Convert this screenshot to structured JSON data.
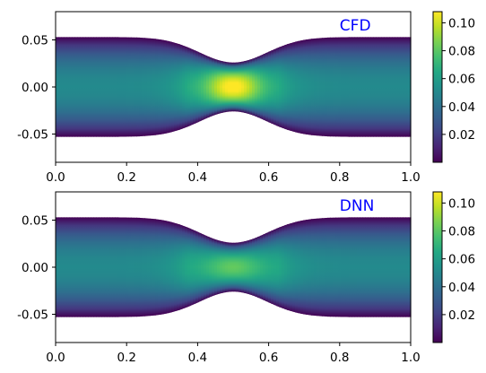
{
  "chart_data": [
    {
      "type": "heatmap",
      "label": "CFD",
      "label_color": "#0000ff",
      "colormap": "viridis",
      "xlim": [
        0.0,
        1.0
      ],
      "ylim": [
        -0.08,
        0.08
      ],
      "x_ticks": [
        "0.0",
        "0.2",
        "0.4",
        "0.6",
        "0.8",
        "1.0"
      ],
      "y_ticks": [
        "0.05",
        "0.00",
        "-0.05"
      ],
      "domain": {
        "wall_half_height": 0.053,
        "throat_half_height": 0.026,
        "throat_center_x": 0.5,
        "stenosis_half_width": 0.17
      },
      "field": {
        "peak_value": 0.108,
        "peak_x": 0.5,
        "wall_value": 0.0
      },
      "colorbar": {
        "min": 0.0,
        "max": 0.108,
        "ticks": [
          "0.10",
          "0.08",
          "0.06",
          "0.04",
          "0.02"
        ]
      }
    },
    {
      "type": "heatmap",
      "label": "DNN",
      "label_color": "#0000ff",
      "colormap": "viridis",
      "xlim": [
        0.0,
        1.0
      ],
      "ylim": [
        -0.08,
        0.08
      ],
      "x_ticks": [
        "0.0",
        "0.2",
        "0.4",
        "0.6",
        "0.8",
        "1.0"
      ],
      "y_ticks": [
        "0.05",
        "0.00",
        "-0.05"
      ],
      "domain": {
        "wall_half_height": 0.053,
        "throat_half_height": 0.026,
        "throat_center_x": 0.5,
        "stenosis_half_width": 0.17
      },
      "field": {
        "peak_value": 0.078,
        "peak_x": 0.5,
        "wall_value": 0.0
      },
      "colorbar": {
        "min": 0.0,
        "max": 0.108,
        "ticks": [
          "0.10",
          "0.08",
          "0.06",
          "0.04",
          "0.02"
        ]
      }
    }
  ]
}
